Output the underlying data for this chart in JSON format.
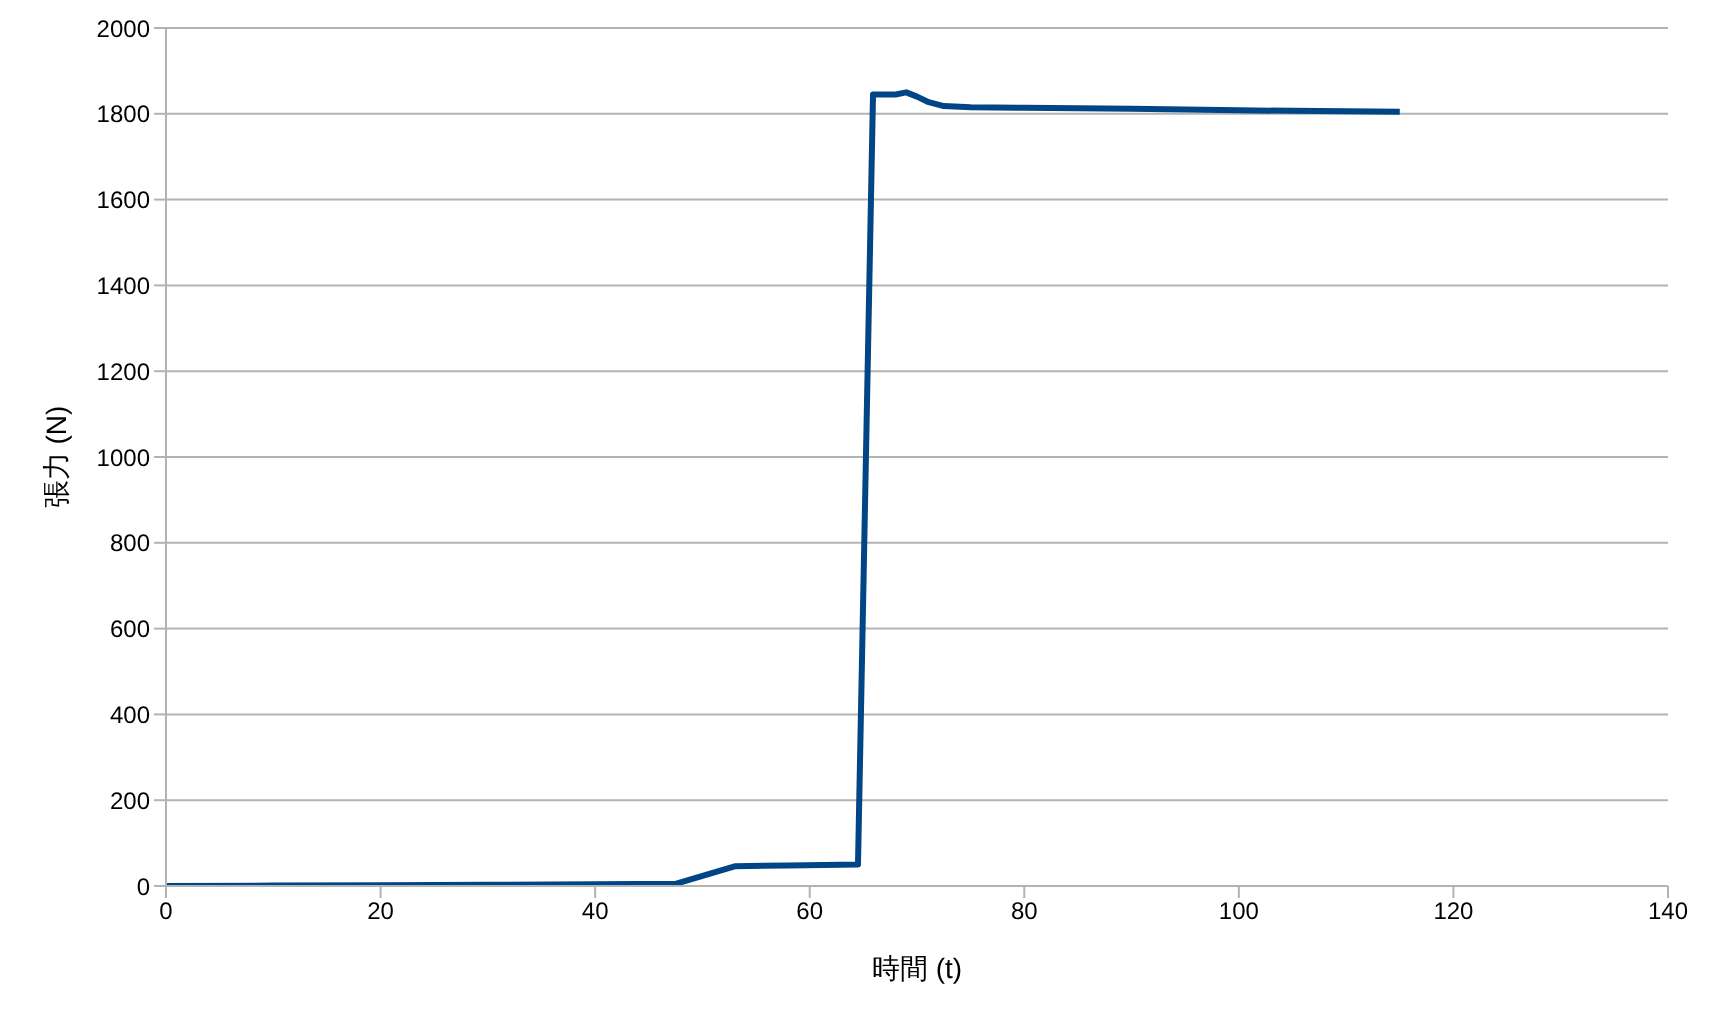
{
  "chart_data": {
    "type": "line",
    "xlabel": "時間 (t)",
    "ylabel": "張力 (N)",
    "x": [
      0,
      10,
      20,
      30,
      40,
      47.5,
      53,
      58,
      64.5,
      65.9,
      68,
      69,
      70,
      71,
      72.5,
      75,
      80,
      85,
      90,
      95,
      100,
      105,
      110,
      115
    ],
    "series": [
      {
        "color": "#004586",
        "values": [
          0,
          1,
          2,
          3,
          4,
          5,
          46,
          48,
          50,
          1845,
          1845,
          1850,
          1840,
          1828,
          1818,
          1815,
          1814,
          1813,
          1812,
          1810,
          1808,
          1807,
          1806,
          1805
        ]
      }
    ],
    "xlim": [
      0,
      140
    ],
    "xticks": [
      0,
      20,
      40,
      60,
      80,
      100,
      120,
      140
    ],
    "ylim": [
      0,
      2000
    ],
    "yticks": [
      0,
      200,
      400,
      600,
      800,
      1000,
      1200,
      1400,
      1600,
      1800,
      2000
    ],
    "grid": "y",
    "legend": false,
    "marker": "none",
    "line_style": "solid"
  }
}
